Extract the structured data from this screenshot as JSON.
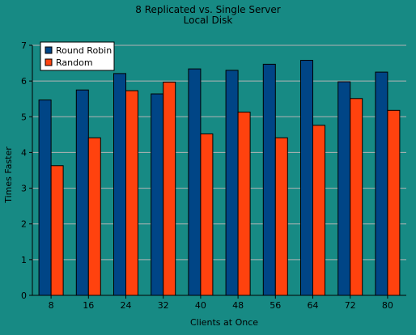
{
  "chart_data": {
    "type": "bar",
    "title": "8 Replicated vs. Single Server",
    "subtitle": "Local Disk",
    "xlabel": "Clients at Once",
    "ylabel": "Times Faster",
    "ylim": [
      0,
      7
    ],
    "yticks": [
      0,
      1,
      2,
      3,
      4,
      5,
      6,
      7
    ],
    "grid": true,
    "legend_position": "top-left",
    "categories": [
      "8",
      "16",
      "24",
      "32",
      "40",
      "48",
      "56",
      "64",
      "72",
      "80"
    ],
    "series": [
      {
        "name": "Round Robin",
        "color": "#004586",
        "values": [
          5.47,
          5.75,
          6.21,
          5.64,
          6.34,
          6.3,
          6.47,
          6.58,
          5.98,
          6.25
        ]
      },
      {
        "name": "Random",
        "color": "#ff420e",
        "values": [
          3.63,
          4.41,
          5.73,
          5.97,
          4.52,
          5.13,
          4.41,
          4.76,
          5.51,
          5.18
        ]
      }
    ]
  },
  "colors": {
    "background": "#178a84",
    "grid": "#b3b3b3",
    "axis": "#000000"
  }
}
